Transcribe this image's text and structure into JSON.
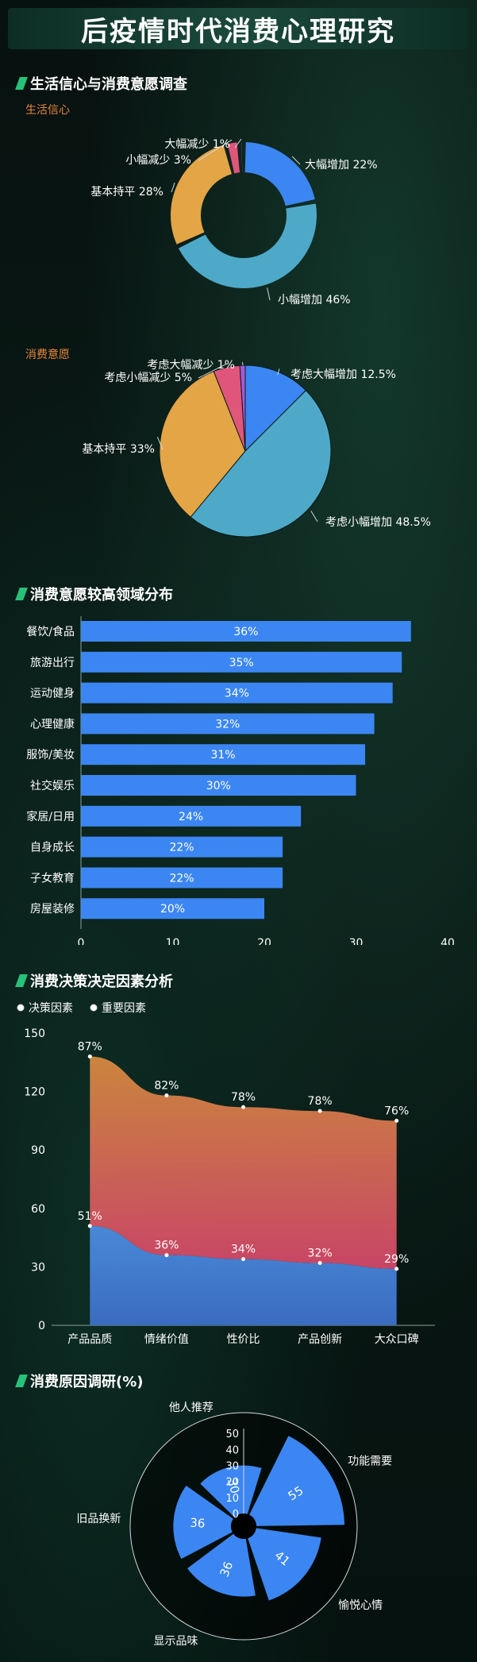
{
  "page": {
    "title": "后疫情时代消费心理研究"
  },
  "sections": {
    "s1_title": "生活信心与消费意愿调查",
    "s1_sub1": "生活信心",
    "s1_sub2": "消费意愿",
    "s2_title": "消费意愿较高领域分布",
    "s3_title": "消费决策决定因素分析",
    "s4_title": "消费原因调研(%)"
  },
  "colors": {
    "blue": "#3b86f2",
    "teal": "#4ea9c9",
    "orange": "#e3a545",
    "pink": "#e0557a",
    "purple": "#a35ad8",
    "accent": "#e6873a",
    "green": "#27c27a"
  },
  "chart_data": [
    {
      "type": "pie",
      "variant": "donut",
      "subtitle": "生活信心",
      "slices": [
        {
          "label": "大幅增加",
          "value": 22,
          "display": "大幅增加 22%",
          "color": "#3b86f2"
        },
        {
          "label": "小幅增加",
          "value": 46,
          "display": "小幅增加 46%",
          "color": "#4ea9c9"
        },
        {
          "label": "基本持平",
          "value": 28,
          "display": "基本持平 28%",
          "color": "#e3a545"
        },
        {
          "label": "小幅减少",
          "value": 3,
          "display": "小幅减少 3%",
          "color": "#e0557a"
        },
        {
          "label": "大幅减少",
          "value": 1,
          "display": "大幅减少 1%",
          "color": "#a35ad8"
        }
      ]
    },
    {
      "type": "pie",
      "subtitle": "消费意愿",
      "slices": [
        {
          "label": "考虑大幅增加",
          "value": 12.5,
          "display": "考虑大幅增加 12.5%",
          "color": "#3b86f2"
        },
        {
          "label": "考虑小幅增加",
          "value": 48.5,
          "display": "考虑小幅增加 48.5%",
          "color": "#4ea9c9"
        },
        {
          "label": "基本持平",
          "value": 33,
          "display": "基本持平 33%",
          "color": "#e3a545"
        },
        {
          "label": "考虑小幅减少",
          "value": 5,
          "display": "考虑小幅减少 5%",
          "color": "#e0557a"
        },
        {
          "label": "考虑大幅减少",
          "value": 1,
          "display": "考虑大幅减少 1%",
          "color": "#a35ad8"
        }
      ]
    },
    {
      "type": "bar",
      "orientation": "horizontal",
      "title": "消费意愿较高领域分布",
      "categories": [
        "餐饮/食品",
        "旅游出行",
        "运动健身",
        "心理健康",
        "服饰/美妆",
        "社交娱乐",
        "家居/日用",
        "自身成长",
        "子女教育",
        "房屋装修"
      ],
      "values": [
        36,
        35,
        34,
        32,
        31,
        30,
        24,
        22,
        22,
        20
      ],
      "value_labels": [
        "36%",
        "35%",
        "34%",
        "32%",
        "31%",
        "30%",
        "24%",
        "22%",
        "22%",
        "20%"
      ],
      "xlim": [
        0,
        40
      ],
      "xticks": [
        "0",
        "10",
        "20",
        "30",
        "40"
      ],
      "color": "#3b86f2"
    },
    {
      "type": "area",
      "stacked": true,
      "title": "消费决策决定因素分析",
      "categories": [
        "产品品质",
        "情绪价值",
        "性价比",
        "产品创新",
        "大众口碑"
      ],
      "series": [
        {
          "name": "决策因素",
          "values": [
            51,
            36,
            34,
            32,
            29
          ],
          "labels": [
            "51%",
            "36%",
            "34%",
            "32%",
            "29%"
          ],
          "color": "#4a8fd8"
        },
        {
          "name": "重要因素",
          "values": [
            87,
            82,
            78,
            78,
            76
          ],
          "labels": [
            "87%",
            "82%",
            "78%",
            "78%",
            "76%"
          ],
          "color": "#e07a4f"
        }
      ],
      "ylim": [
        0,
        150
      ],
      "yticks": [
        "0",
        "30",
        "60",
        "90",
        "120",
        "150"
      ],
      "legend": "top-left"
    },
    {
      "type": "polar-bar",
      "title": "消费原因调研(%)",
      "categories": [
        "功能需要",
        "愉悦心情",
        "显示品味",
        "旧品换新",
        "他人推荐"
      ],
      "values": [
        55,
        41,
        36,
        36,
        30
      ],
      "value_labels": [
        "55",
        "41",
        "36",
        "36",
        "30"
      ],
      "rmax": 55,
      "rticks": [
        "0",
        "10",
        "20",
        "30",
        "40",
        "50"
      ],
      "color": "#3b86f2"
    }
  ]
}
